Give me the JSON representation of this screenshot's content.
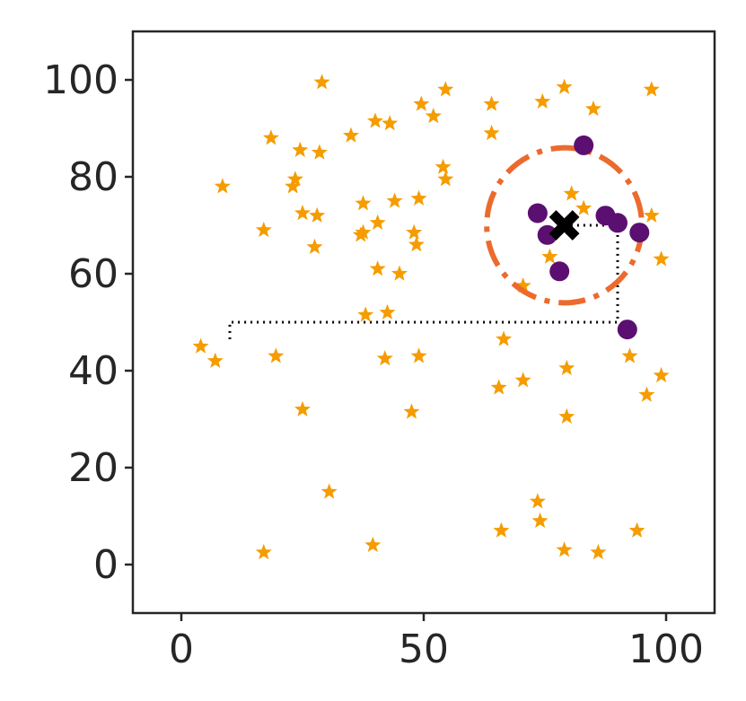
{
  "chart_data": {
    "type": "scatter",
    "title": "",
    "xlabel": "",
    "ylabel": "",
    "xlim": [
      -10,
      110
    ],
    "ylim": [
      -10,
      110
    ],
    "xticks": [
      0,
      50,
      100
    ],
    "yticks": [
      0,
      20,
      40,
      60,
      80,
      100
    ],
    "grid": false,
    "legend": "none",
    "colors": {
      "stars": "#f59c00",
      "circles": "#5b0f70",
      "ring": "#ec6a2c",
      "center": "#000000",
      "path": "#000000"
    },
    "series": [
      {
        "marker": "star",
        "points": [
          [
            4,
            45
          ],
          [
            7,
            42
          ],
          [
            8.5,
            78
          ],
          [
            17,
            69
          ],
          [
            17,
            2.5
          ],
          [
            18.5,
            88
          ],
          [
            19.5,
            43
          ],
          [
            23,
            78
          ],
          [
            23.5,
            79.5
          ],
          [
            24.5,
            85.5
          ],
          [
            25,
            72.5
          ],
          [
            25,
            32
          ],
          [
            27.5,
            65.5
          ],
          [
            28,
            72
          ],
          [
            28.5,
            85
          ],
          [
            29,
            99.5
          ],
          [
            30.5,
            15
          ],
          [
            35,
            88.5
          ],
          [
            37,
            68
          ],
          [
            37.5,
            68.5
          ],
          [
            37.5,
            74.5
          ],
          [
            38,
            51.5
          ],
          [
            39.5,
            4
          ],
          [
            40,
            91.5
          ],
          [
            40.5,
            70.5
          ],
          [
            40.5,
            61
          ],
          [
            42,
            42.5
          ],
          [
            42.5,
            52
          ],
          [
            43,
            91
          ],
          [
            44,
            75
          ],
          [
            45,
            60
          ],
          [
            47.5,
            31.5
          ],
          [
            48,
            68.5
          ],
          [
            48.5,
            66
          ],
          [
            49,
            75.5
          ],
          [
            49,
            43
          ],
          [
            49.5,
            95
          ],
          [
            52,
            92.5
          ],
          [
            54,
            82
          ],
          [
            54.5,
            98
          ],
          [
            54.5,
            79.5
          ],
          [
            64,
            95
          ],
          [
            64,
            89
          ],
          [
            65.5,
            36.5
          ],
          [
            66,
            7
          ],
          [
            66.5,
            46.5
          ],
          [
            70.5,
            38
          ],
          [
            70.5,
            57.5
          ],
          [
            73.5,
            13
          ],
          [
            74,
            9
          ],
          [
            74.5,
            95.5
          ],
          [
            76,
            63.5
          ],
          [
            79,
            98.5
          ],
          [
            79,
            3
          ],
          [
            79.5,
            40.5
          ],
          [
            79.5,
            30.5
          ],
          [
            80.5,
            76.5
          ],
          [
            83,
            73.5
          ],
          [
            85,
            94
          ],
          [
            86,
            2.5
          ],
          [
            92.5,
            43
          ],
          [
            94,
            7
          ],
          [
            96,
            35
          ],
          [
            97,
            98
          ],
          [
            97,
            72
          ],
          [
            99,
            63
          ],
          [
            99,
            39
          ]
        ]
      },
      {
        "marker": "circle",
        "points": [
          [
            73.5,
            72.5
          ],
          [
            75.5,
            68
          ],
          [
            78,
            60.5
          ],
          [
            83,
            86.5
          ],
          [
            87.5,
            72
          ],
          [
            90,
            70.5
          ],
          [
            92,
            48.5
          ],
          [
            94.5,
            68.5
          ]
        ]
      }
    ],
    "annotations": [
      {
        "type": "ring",
        "center": [
          79,
          70
        ],
        "radius": 16
      },
      {
        "type": "center-marker",
        "marker": "x",
        "at": [
          79,
          70
        ]
      },
      {
        "type": "path",
        "points": [
          [
            10,
            46.5
          ],
          [
            10,
            50
          ],
          [
            90,
            50
          ],
          [
            90,
            70
          ],
          [
            80,
            70
          ]
        ]
      }
    ]
  }
}
